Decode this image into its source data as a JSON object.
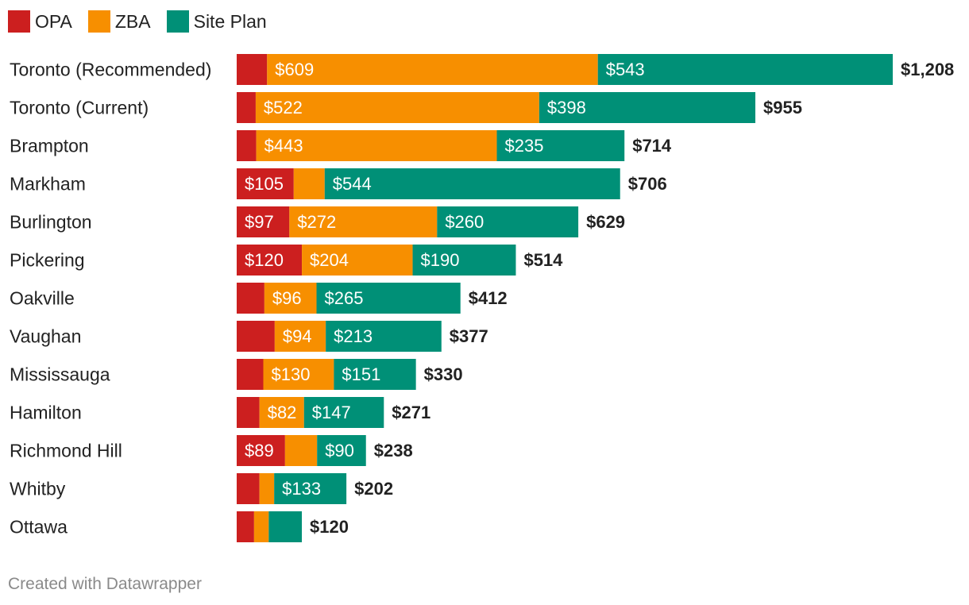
{
  "credit": "Created with Datawrapper",
  "chart_data": {
    "type": "bar",
    "orientation": "horizontal",
    "stacked": true,
    "legend_position": "top-left",
    "categories": [
      "Toronto (Recommended)",
      "Toronto (Current)",
      "Brampton",
      "Markham",
      "Burlington",
      "Pickering",
      "Oakville",
      "Vaughan",
      "Mississauga",
      "Hamilton",
      "Richmond Hill",
      "Whitby",
      "Ottawa"
    ],
    "series": [
      {
        "name": "OPA",
        "color": "#cc1f1f",
        "values": [
          56,
          35,
          36,
          105,
          97,
          120,
          51,
          70,
          49,
          42,
          89,
          42,
          32
        ]
      },
      {
        "name": "ZBA",
        "color": "#f78f00",
        "values": [
          609,
          522,
          443,
          57,
          272,
          204,
          96,
          94,
          130,
          82,
          59,
          27,
          27
        ]
      },
      {
        "name": "Site Plan",
        "color": "#009077",
        "values": [
          543,
          398,
          235,
          544,
          260,
          190,
          265,
          213,
          151,
          147,
          90,
          133,
          61
        ]
      }
    ],
    "segment_labels": [
      [
        "",
        "$609",
        "$543"
      ],
      [
        "",
        "$522",
        "$398"
      ],
      [
        "",
        "$443",
        "$235"
      ],
      [
        "$105",
        "",
        "$544"
      ],
      [
        "$97",
        "$272",
        "$260"
      ],
      [
        "$120",
        "$204",
        "$190"
      ],
      [
        "",
        "$96",
        "$265"
      ],
      [
        "",
        "$94",
        "$213"
      ],
      [
        "",
        "$130",
        "$151"
      ],
      [
        "",
        "$82",
        "$147"
      ],
      [
        "$89",
        "",
        "$90"
      ],
      [
        "",
        "",
        "$133"
      ],
      [
        "",
        "",
        ""
      ]
    ],
    "totals": [
      "$1,208",
      "$955",
      "$714",
      "$706",
      "$629",
      "$514",
      "$412",
      "$377",
      "$330",
      "$271",
      "$238",
      "$202",
      "$120"
    ],
    "xlim": [
      0,
      1208
    ],
    "grid": false
  }
}
